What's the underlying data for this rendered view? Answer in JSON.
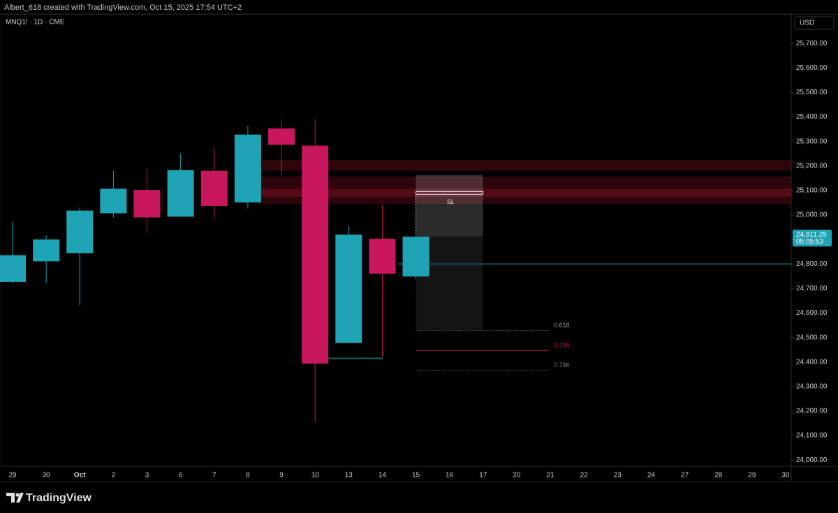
{
  "header": {
    "byline": "Albert_618 created with TradingView.com, Oct 15, 2025 17:54 UTC+2",
    "brand": "TradingView"
  },
  "chart_data": {
    "type": "candlestick",
    "title": "MNQ1! · 1D · CME",
    "currency": "USD",
    "up_color": "#1ea4b4",
    "down_color": "#c8175d",
    "categories": [
      "29",
      "30",
      "Oct",
      "2",
      "3",
      "6",
      "7",
      "8",
      "9",
      "10",
      "13",
      "14",
      "15",
      "16",
      "17",
      "20",
      "21",
      "22",
      "23",
      "24",
      "27",
      "28",
      "29",
      "30"
    ],
    "open": [
      24727,
      24811,
      24844,
      25007,
      25102,
      24993,
      25180,
      25051,
      25353,
      25283,
      24478,
      24903,
      24749,
      null,
      null,
      null,
      null,
      null,
      null,
      null,
      null,
      null,
      null,
      null
    ],
    "high": [
      24973,
      24917,
      25032,
      25180,
      25194,
      25253,
      25272,
      25364,
      25392,
      25392,
      24956,
      25040,
      24915,
      null,
      null,
      null,
      null,
      null,
      null,
      null,
      null,
      null,
      null,
      null
    ],
    "low": [
      24720,
      24721,
      24632,
      24990,
      24925,
      24993,
      24984,
      25026,
      25163,
      24154,
      24478,
      24419,
      24738,
      null,
      null,
      null,
      null,
      null,
      null,
      null,
      null,
      null,
      null,
      null
    ],
    "close": [
      24836,
      24900,
      25018,
      25107,
      24990,
      25183,
      25037,
      25328,
      25286,
      24394,
      24920,
      24760,
      24911.25,
      null,
      null,
      null,
      null,
      null,
      null,
      null,
      null,
      null,
      null,
      null
    ],
    "ylim": [
      23975,
      25820
    ],
    "yticks": [
      {
        "value": 24000,
        "label": "24,000.00"
      },
      {
        "value": 24100,
        "label": "24,100.00"
      },
      {
        "value": 24200,
        "label": "24,200.00"
      },
      {
        "value": 24300,
        "label": "24,300.00"
      },
      {
        "value": 24400,
        "label": "24,400.00"
      },
      {
        "value": 24500,
        "label": "24,500.00"
      },
      {
        "value": 24600,
        "label": "24,600.00"
      },
      {
        "value": 24700,
        "label": "24,700.00"
      },
      {
        "value": 24800,
        "label": "24,800.00"
      },
      {
        "value": 24900,
        "label": "24,900.00"
      },
      {
        "value": 25000,
        "label": "25,000.00"
      },
      {
        "value": 25100,
        "label": "25,100.00"
      },
      {
        "value": 25200,
        "label": "25,200.00"
      },
      {
        "value": 25300,
        "label": "25,300.00"
      },
      {
        "value": 25400,
        "label": "25,400.00"
      },
      {
        "value": 25500,
        "label": "25,500.00"
      },
      {
        "value": 25600,
        "label": "25,600.00"
      },
      {
        "value": 25700,
        "label": "25,700.00"
      }
    ],
    "last_price": {
      "value": 24911.25,
      "label": "24,911.25",
      "countdown": "05:05:53"
    },
    "zones": [
      {
        "low": 25180,
        "high": 25225
      },
      {
        "low": 25046,
        "high": 25157
      },
      {
        "low": 25074,
        "high": 25107
      }
    ],
    "position": {
      "top": 25163,
      "entry": 24911.25,
      "bottom": 24531
    },
    "stop_loss": {
      "label": "SL",
      "price": 25090
    },
    "levels": [
      {
        "label": "0.618",
        "price": 24528,
        "color": "#9a9a9a"
      },
      {
        "label": "0.705",
        "price": 24447,
        "color": "#c8175d"
      },
      {
        "label": "0.786",
        "price": 24366,
        "color": "#777777"
      }
    ],
    "lines": [
      {
        "price": 24800,
        "color": "#0f4a50"
      },
      {
        "price": 24415,
        "color": "#1b5e66"
      }
    ]
  }
}
